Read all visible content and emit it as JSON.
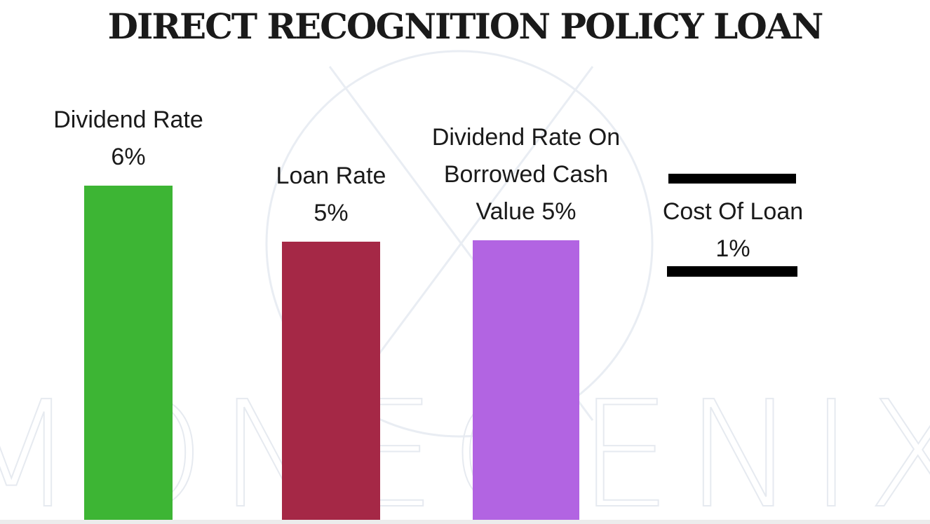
{
  "chart_data": {
    "type": "bar",
    "title": "DIRECT RECOGNITION POLICY LOAN",
    "categories": [
      "Dividend Rate",
      "Loan Rate",
      "Dividend Rate On Borrowed Cash Value"
    ],
    "values": [
      6,
      5,
      5
    ],
    "labels": [
      [
        "Dividend Rate",
        "6%"
      ],
      [
        "Loan Rate",
        "5%"
      ],
      [
        "Dividend Rate On",
        "Borrowed Cash",
        "Value 5%"
      ]
    ],
    "colors": [
      "#3db534",
      "#a52846",
      "#b264e2"
    ],
    "ylim": [
      0,
      6
    ],
    "annotation": {
      "lines": [
        "Cost Of Loan",
        "1%"
      ],
      "value": 1,
      "style": "text between two black horizontal rules"
    }
  },
  "watermark": {
    "text": "MONEGENIX",
    "logo": "X-in-circle",
    "color": "#e9edf3"
  }
}
